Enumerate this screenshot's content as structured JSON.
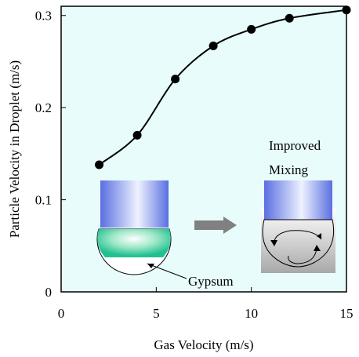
{
  "chart_data": {
    "type": "line",
    "xlabel": "Gas Velocity (m/s)",
    "ylabel": "Particle Velocity in Droplet (m/s)",
    "x": [
      2,
      4,
      6,
      8,
      10,
      12,
      15
    ],
    "series": [
      {
        "color": "#000000",
        "values": [
          0.138,
          0.17,
          0.231,
          0.267,
          0.285,
          0.297,
          0.306
        ]
      }
    ],
    "xlim": [
      0,
      15
    ],
    "xticks": [
      0,
      5,
      10,
      15
    ],
    "ylim": [
      0,
      0.31
    ],
    "yticks": [
      0,
      0.1,
      0.2,
      0.3
    ],
    "annotations": [
      "Improved",
      "Mixing",
      "Gypsum"
    ]
  }
}
